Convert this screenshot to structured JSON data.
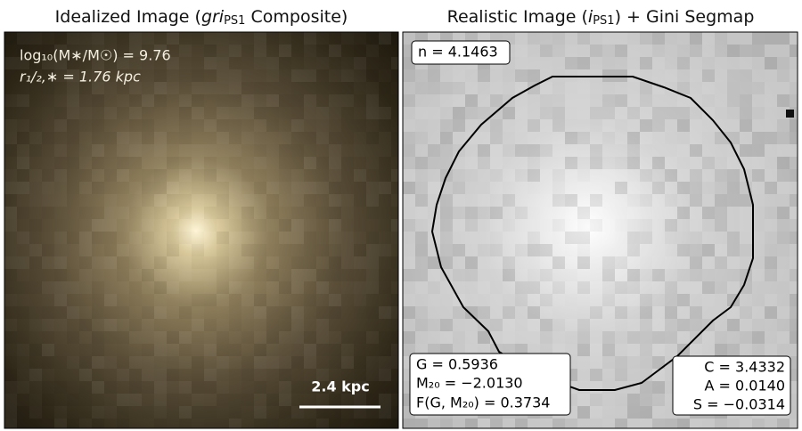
{
  "left_panel": {
    "title": [
      "Idealized Image (",
      "gri",
      "PS1",
      " Composite)"
    ],
    "annotations": [
      "log₁₀(M∗/M☉) = 9.76",
      "r₁/₂,∗ = 1.76 kpc"
    ],
    "scale_bar": "2.4 kpc"
  },
  "right_panel": {
    "title": [
      "Realistic Image (",
      "i",
      "PS1",
      ") + Gini Segmap"
    ],
    "sersic": "n = 4.1463",
    "stats_left": [
      "G = 0.5936",
      "M₂₀ = −2.0130",
      "F(G, M₂₀) = 0.3734"
    ],
    "stats_right": [
      "C = 3.4332",
      "A = 0.0140",
      "S = −0.0314"
    ]
  }
}
